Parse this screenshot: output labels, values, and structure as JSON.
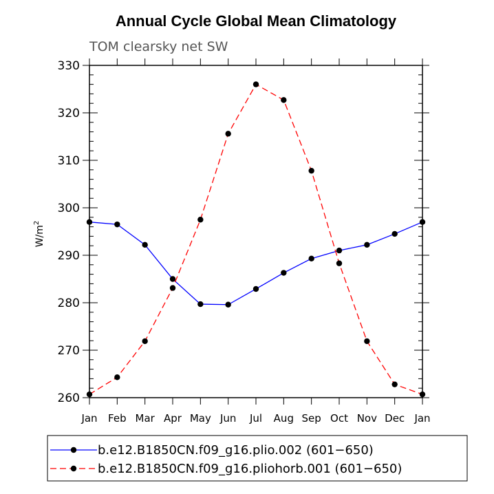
{
  "chart_data": {
    "type": "line",
    "title": "Annual Cycle Global Mean Climatology",
    "subtitle": "TOM clearsky net SW",
    "ylabel_base": "W/m",
    "ylabel_sup": "2",
    "xlabel": "",
    "ylim": [
      260,
      330
    ],
    "yticks": [
      260,
      270,
      280,
      290,
      300,
      310,
      320,
      330
    ],
    "categories": [
      "Jan",
      "Feb",
      "Mar",
      "Apr",
      "May",
      "Jun",
      "Jul",
      "Aug",
      "Sep",
      "Oct",
      "Nov",
      "Dec",
      "Jan"
    ],
    "series": [
      {
        "name": "b.e12.B1850CN.f09_g16.plio.002 (601−650)",
        "color": "#0000ff",
        "dash": "solid",
        "values": [
          297.0,
          296.5,
          292.2,
          285.0,
          279.7,
          279.6,
          282.9,
          286.3,
          289.3,
          291.0,
          292.2,
          294.5,
          297.0
        ]
      },
      {
        "name": "b.e12.B1850CN.f09_g16.pliohorb.001 (601−650)",
        "color": "#ff0000",
        "dash": "dashed",
        "values": [
          260.7,
          264.3,
          271.9,
          283.1,
          297.5,
          315.6,
          326.0,
          322.7,
          307.8,
          288.3,
          271.9,
          262.8,
          260.7
        ]
      }
    ],
    "legend_position": "bottom",
    "grid": false
  }
}
